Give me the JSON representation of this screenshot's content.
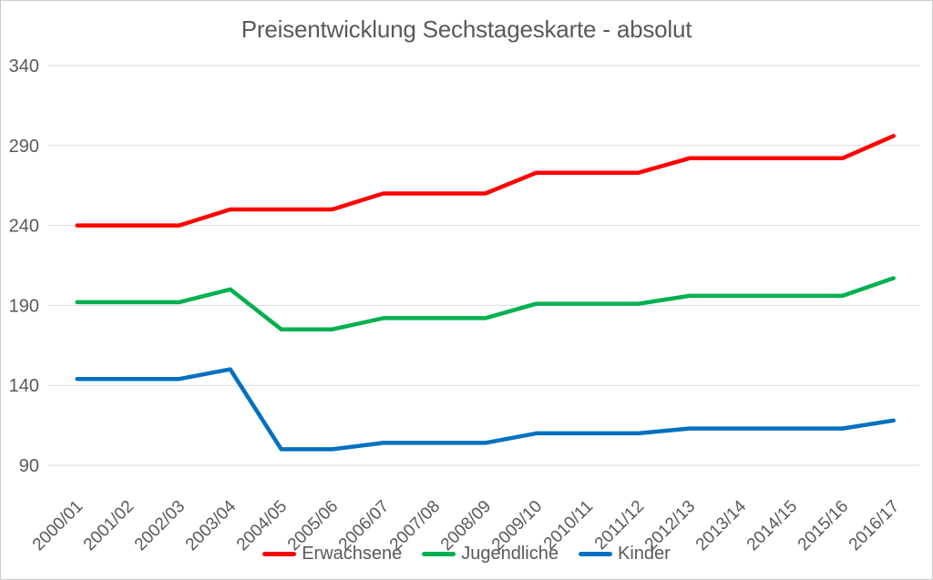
{
  "title": "Preisentwicklung Sechstageskarte - absolut",
  "colors": {
    "background": "#FFFFFF",
    "border": "#CBCBCB",
    "gridline": "#D9D9D9",
    "text": "#595959",
    "erwachsene": "#FF0000",
    "jugendliche": "#00B050",
    "kinder": "#0070C0"
  },
  "chart_data": {
    "type": "line",
    "title": "Preisentwicklung Sechstageskarte - absolut",
    "categories": [
      "2000/01",
      "2001/02",
      "2002/03",
      "2003/04",
      "2004/05",
      "2005/06",
      "2006/07",
      "2007/08",
      "2008/09",
      "2009/10",
      "2010/11",
      "2011/12",
      "2012/13",
      "2013/14",
      "2014/15",
      "2015/16",
      "2016/17"
    ],
    "series": [
      {
        "name": "Erwachsene",
        "color": "#FF0000",
        "values": [
          240,
          240,
          240,
          250,
          250,
          250,
          260,
          260,
          260,
          273,
          273,
          273,
          282,
          282,
          282,
          282,
          296
        ]
      },
      {
        "name": "Jugendliche",
        "color": "#00B050",
        "values": [
          192,
          192,
          192,
          200,
          175,
          175,
          182,
          182,
          182,
          191,
          191,
          191,
          196,
          196,
          196,
          196,
          207
        ]
      },
      {
        "name": "Kinder",
        "color": "#0070C0",
        "values": [
          144,
          144,
          144,
          150,
          100,
          100,
          104,
          104,
          104,
          110,
          110,
          110,
          113,
          113,
          113,
          113,
          118
        ]
      }
    ],
    "xlabel": "",
    "ylabel": "",
    "y_axis": {
      "min": 90,
      "max": 340,
      "step": 50,
      "ticks": [
        90,
        140,
        190,
        240,
        290,
        340
      ]
    },
    "x_tick_rotation_deg": -45,
    "grid": "horizontal-only",
    "legend_position": "bottom"
  }
}
